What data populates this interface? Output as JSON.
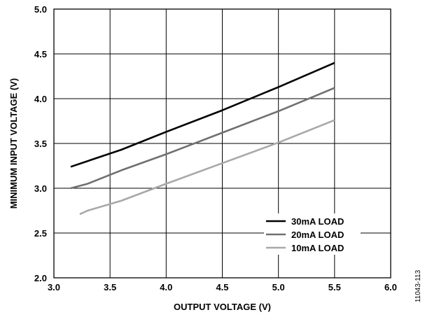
{
  "chart_data": {
    "type": "line",
    "xlabel": "OUTPUT VOLTAGE (V)",
    "ylabel": "MINIMUM INPUT VOLTAGE (V)",
    "xlim": [
      3.0,
      6.0
    ],
    "ylim": [
      2.0,
      5.0
    ],
    "x_ticks": [
      "3.0",
      "3.5",
      "4.0",
      "4.5",
      "5.0",
      "5.5",
      "6.0"
    ],
    "y_ticks": [
      "2.0",
      "2.5",
      "3.0",
      "3.5",
      "4.0",
      "4.5",
      "5.0"
    ],
    "grid": true,
    "legend_position": "bottom-right",
    "figure_id": "11043-113",
    "series": [
      {
        "name": "30mA LOAD",
        "color": "#000000",
        "points": [
          [
            3.15,
            3.24
          ],
          [
            3.6,
            3.43
          ],
          [
            4.0,
            3.63
          ],
          [
            4.5,
            3.87
          ],
          [
            5.0,
            4.13
          ],
          [
            5.5,
            4.4
          ]
        ]
      },
      {
        "name": "20mA LOAD",
        "color": "#707070",
        "points": [
          [
            3.15,
            3.0
          ],
          [
            3.3,
            3.05
          ],
          [
            3.6,
            3.2
          ],
          [
            4.0,
            3.38
          ],
          [
            4.5,
            3.62
          ],
          [
            5.0,
            3.86
          ],
          [
            5.5,
            4.12
          ]
        ]
      },
      {
        "name": "10mA LOAD",
        "color": "#a8a8a8",
        "points": [
          [
            3.23,
            2.71
          ],
          [
            3.3,
            2.75
          ],
          [
            3.6,
            2.86
          ],
          [
            4.0,
            3.05
          ],
          [
            4.5,
            3.28
          ],
          [
            5.0,
            3.51
          ],
          [
            5.5,
            3.76
          ]
        ]
      }
    ]
  }
}
